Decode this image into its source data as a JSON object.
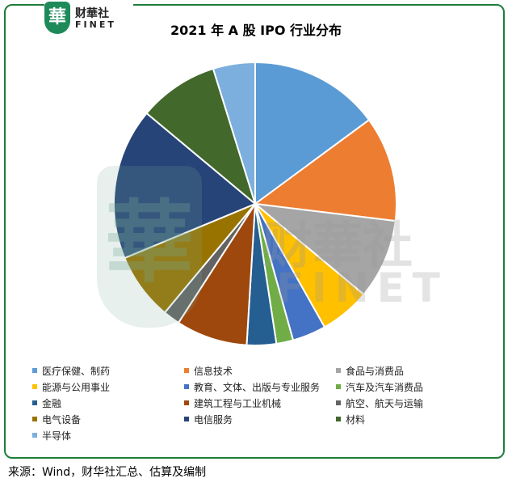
{
  "logo": {
    "cn": "财華社",
    "en": "FINET",
    "seal": "華"
  },
  "watermark": {
    "cn": "财華社",
    "en": "FINET",
    "seal": "華"
  },
  "chart_data": {
    "type": "pie",
    "title": "2021 年 A 股 IPO 行业分布",
    "categories": [
      "医疗保健、制药",
      "信息技术",
      "食品与消费品",
      "能源与公用事业",
      "教育、文体、出版与专业服务",
      "汽车及汽车消费品",
      "金融",
      "建筑工程与工业机械",
      "航空、航天与运输",
      "电气设备",
      "电信服务",
      "材料",
      "半导体"
    ],
    "values": [
      15.5,
      12.5,
      9.5,
      6.0,
      4.0,
      2.0,
      3.5,
      8.5,
      2.0,
      8.0,
      18.0,
      9.5,
      5.0
    ],
    "colors": [
      "#5b9bd5",
      "#ed7d31",
      "#a5a5a5",
      "#ffc000",
      "#4472c4",
      "#70ad47",
      "#255e91",
      "#9e480e",
      "#636363",
      "#997300",
      "#264478",
      "#43682b",
      "#7cafdd"
    ],
    "legend": "bottom",
    "start_angle": "12 o'clock",
    "direction": "clockwise"
  },
  "source_note": "来源：Wind，财华社汇总、估算及编制"
}
